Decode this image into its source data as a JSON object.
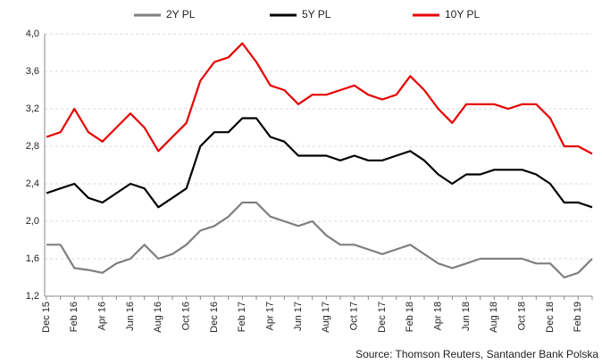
{
  "chart_data": {
    "type": "line",
    "source": "Source: Thomson Reuters, Santander Bank Polska",
    "categories": [
      "Dec 15",
      null,
      "Feb 16",
      null,
      "Apr 16",
      null,
      "Jun 16",
      null,
      "Aug 16",
      null,
      "Oct 16",
      null,
      "Dec 16",
      null,
      "Feb 17",
      null,
      "Apr 17",
      null,
      "Jun 17",
      null,
      "Aug 17",
      null,
      "Oct 17",
      null,
      "Dec 17",
      null,
      "Feb 18",
      null,
      "Apr 18",
      null,
      "Jun 18",
      null,
      "Aug 18",
      null,
      "Oct 18",
      null,
      "Dec 18",
      null,
      "Feb 19",
      null
    ],
    "series": [
      {
        "name": "2Y PL",
        "color": "#7f7f7f",
        "values": [
          1.75,
          1.75,
          1.5,
          1.48,
          1.45,
          1.55,
          1.6,
          1.75,
          1.6,
          1.65,
          1.75,
          1.9,
          1.95,
          2.05,
          2.2,
          2.2,
          2.05,
          2.0,
          1.95,
          2.0,
          1.85,
          1.75,
          1.75,
          1.7,
          1.65,
          1.7,
          1.75,
          1.65,
          1.55,
          1.5,
          1.55,
          1.6,
          1.6,
          1.6,
          1.6,
          1.55,
          1.55,
          1.4,
          1.45,
          1.6
        ]
      },
      {
        "name": "5Y PL",
        "color": "#000000",
        "values": [
          2.3,
          2.35,
          2.4,
          2.25,
          2.2,
          2.3,
          2.4,
          2.35,
          2.15,
          2.25,
          2.35,
          2.8,
          2.95,
          2.95,
          3.1,
          3.1,
          2.9,
          2.85,
          2.7,
          2.7,
          2.7,
          2.65,
          2.7,
          2.65,
          2.65,
          2.7,
          2.75,
          2.65,
          2.5,
          2.4,
          2.5,
          2.5,
          2.55,
          2.55,
          2.55,
          2.5,
          2.4,
          2.2,
          2.2,
          2.15
        ]
      },
      {
        "name": "10Y PL",
        "color": "#e60000",
        "values": [
          2.9,
          2.95,
          3.2,
          2.95,
          2.85,
          3.0,
          3.15,
          3.0,
          2.75,
          2.9,
          3.05,
          3.5,
          3.7,
          3.75,
          3.9,
          3.7,
          3.45,
          3.4,
          3.25,
          3.35,
          3.35,
          3.4,
          3.45,
          3.35,
          3.3,
          3.35,
          3.55,
          3.4,
          3.2,
          3.05,
          3.25,
          3.25,
          3.25,
          3.2,
          3.25,
          3.25,
          3.1,
          2.8,
          2.8,
          2.72
        ]
      }
    ],
    "ylim": [
      1.2,
      4.0
    ],
    "yticks": [
      {
        "value": 1.2,
        "label": "1,2"
      },
      {
        "value": 1.6,
        "label": "1,6"
      },
      {
        "value": 2.0,
        "label": "2,0"
      },
      {
        "value": 2.4,
        "label": "2,4"
      },
      {
        "value": 2.8,
        "label": "2,8"
      },
      {
        "value": 3.2,
        "label": "3,2"
      },
      {
        "value": 3.6,
        "label": "3,6"
      },
      {
        "value": 4.0,
        "label": "4,0"
      }
    ],
    "grid": true
  }
}
